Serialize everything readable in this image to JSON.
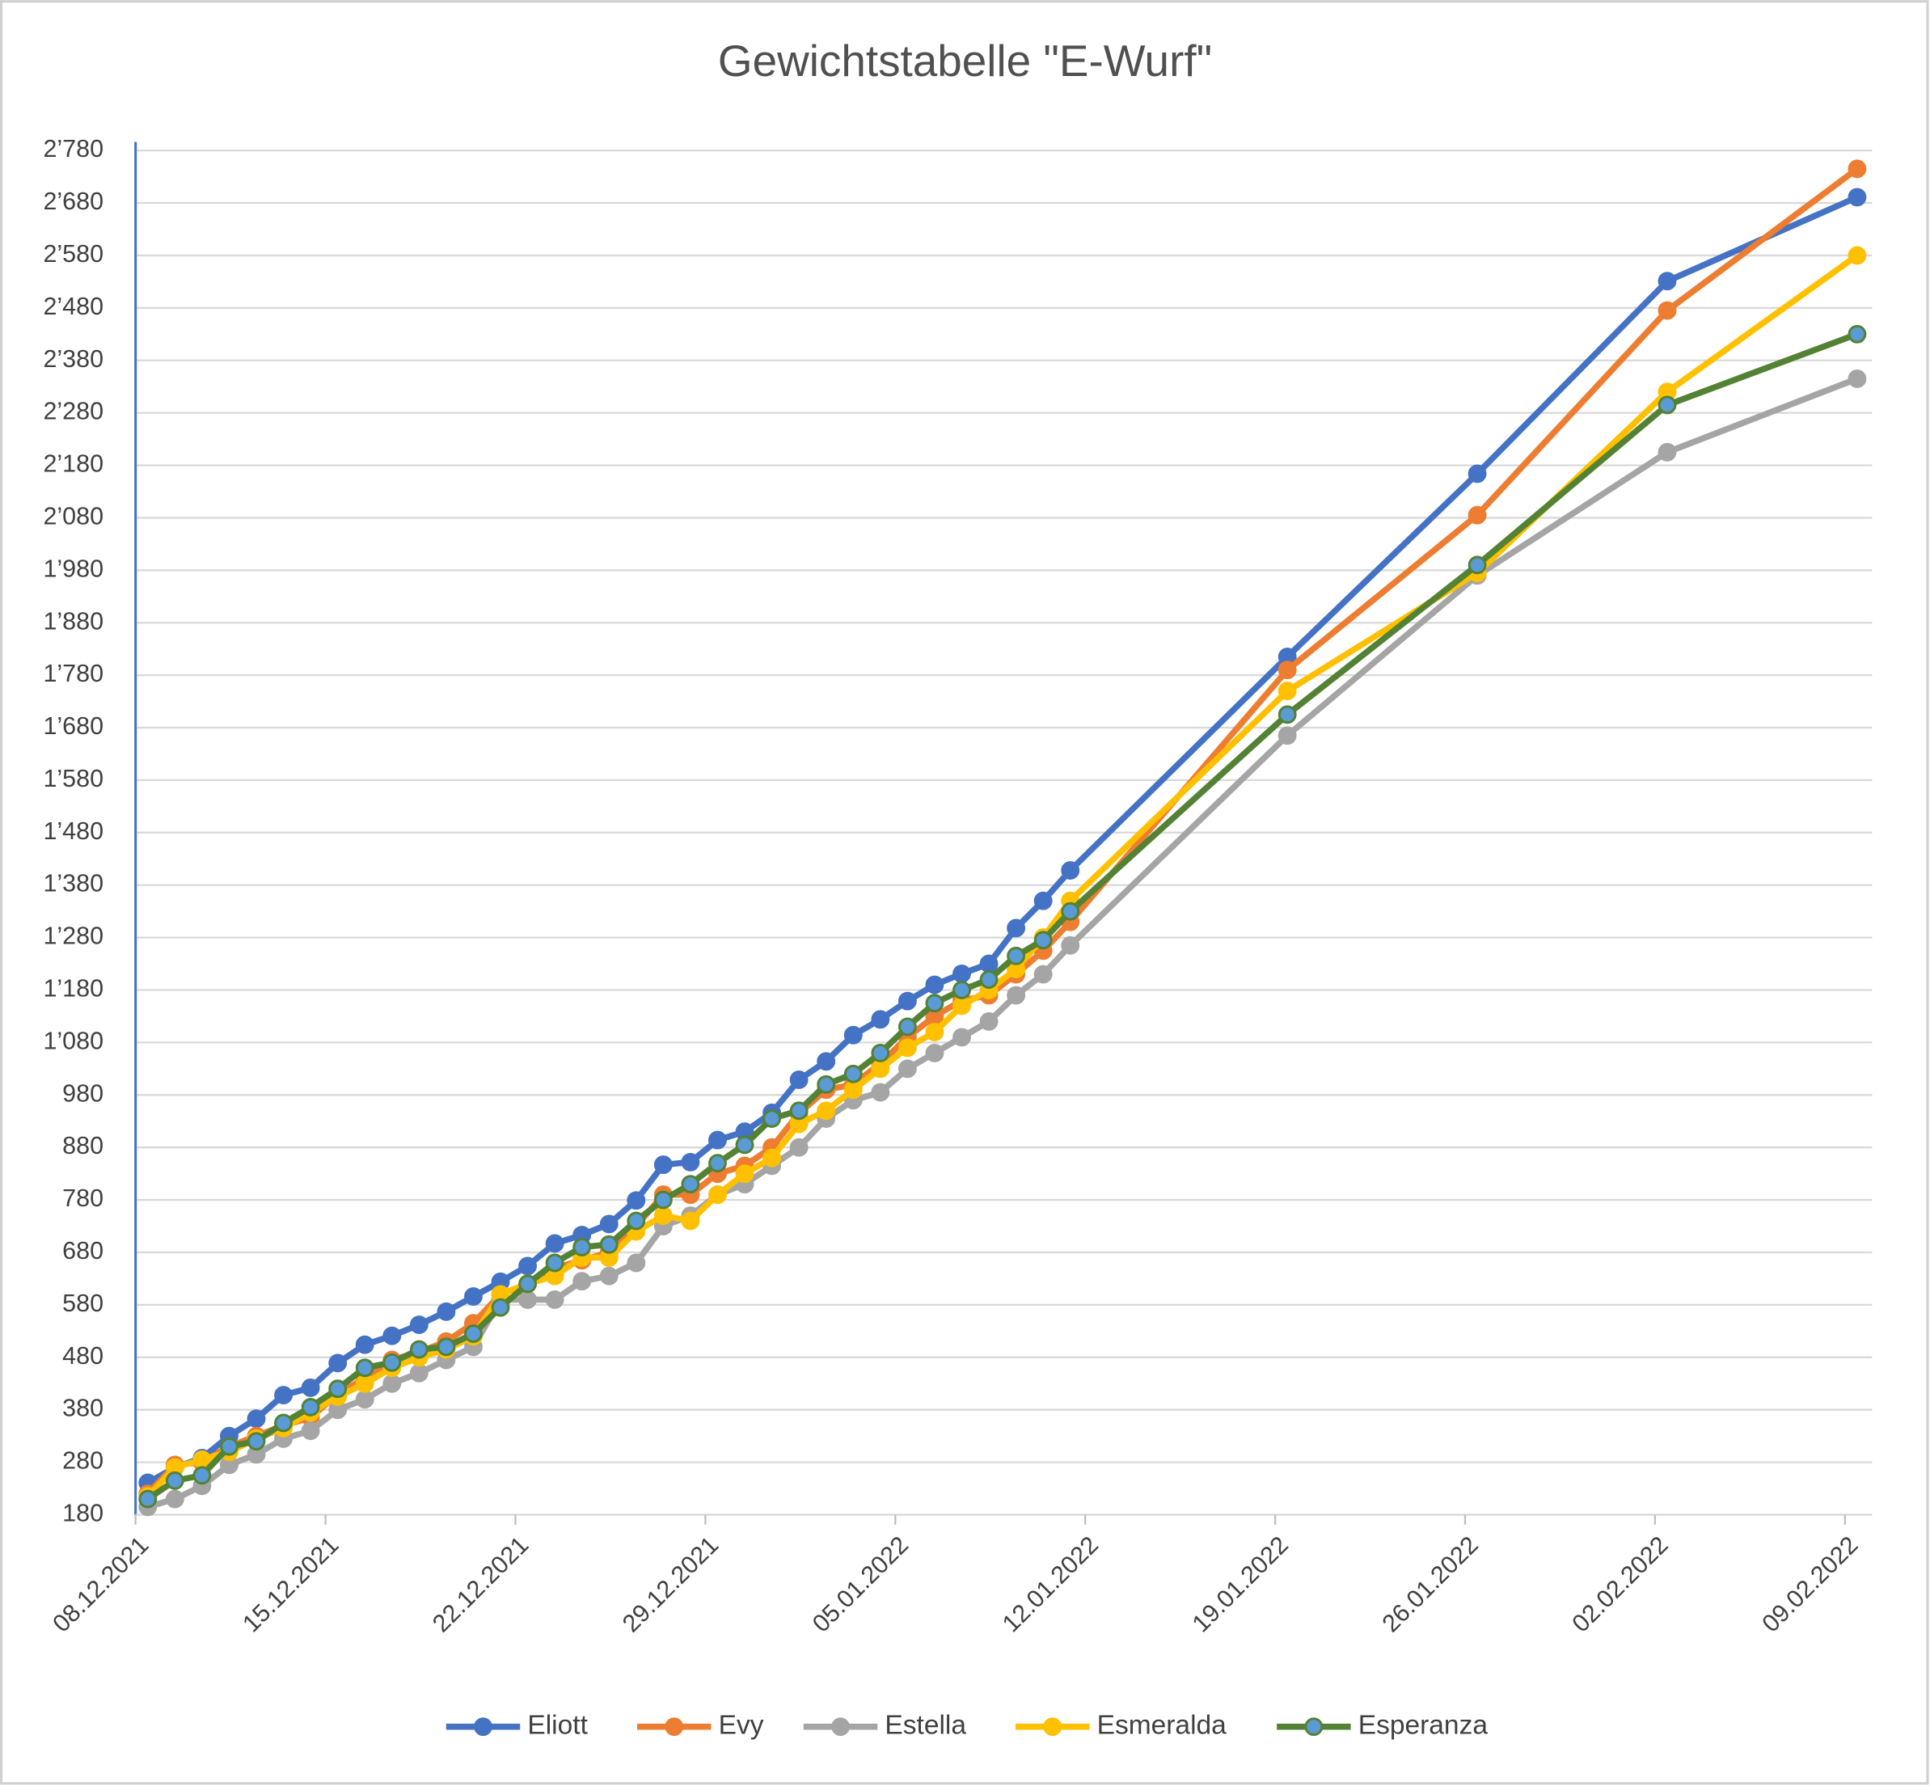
{
  "chart_data": {
    "type": "line",
    "title": "Gewichtstabelle \"E-Wurf\"",
    "x": [
      "08.12.2021",
      "09.12.2021",
      "10.12.2021",
      "11.12.2021",
      "12.12.2021",
      "13.12.2021",
      "14.12.2021",
      "15.12.2021",
      "16.12.2021",
      "17.12.2021",
      "18.12.2021",
      "19.12.2021",
      "20.12.2021",
      "21.12.2021",
      "22.12.2021",
      "23.12.2021",
      "24.12.2021",
      "25.12.2021",
      "26.12.2021",
      "27.12.2021",
      "28.12.2021",
      "29.12.2021",
      "30.12.2021",
      "31.12.2021",
      "01.01.2022",
      "02.01.2022",
      "03.01.2022",
      "04.01.2022",
      "05.01.2022",
      "06.01.2022",
      "07.01.2022",
      "08.01.2022",
      "09.01.2022",
      "10.01.2022",
      "11.01.2022",
      "19.01.2022",
      "26.01.2022",
      "02.02.2022",
      "09.02.2022"
    ],
    "series": [
      {
        "name": "Eliott",
        "color": "#4472c4",
        "values": [
          241,
          270,
          288,
          330,
          363,
          408,
          422,
          469,
          504,
          521,
          542,
          567,
          596,
          624,
          654,
          697,
          713,
          734,
          779,
          847,
          852,
          894,
          910,
          946,
          1009,
          1044,
          1094,
          1124,
          1159,
          1190,
          1211,
          1230,
          1298,
          1350,
          1408,
          1815,
          2164,
          2531,
          2691
        ]
      },
      {
        "name": "Evy",
        "color": "#ed7d31",
        "values": [
          220,
          275,
          280,
          310,
          330,
          350,
          365,
          410,
          440,
          475,
          490,
          510,
          545,
          600,
          620,
          650,
          665,
          680,
          730,
          790,
          790,
          830,
          845,
          880,
          945,
          990,
          1000,
          1040,
          1090,
          1130,
          1160,
          1170,
          1210,
          1255,
          1310,
          1790,
          2085,
          2475,
          2745
        ]
      },
      {
        "name": "Estella",
        "color": "#a5a5a5",
        "values": [
          195,
          210,
          235,
          275,
          295,
          325,
          340,
          380,
          400,
          430,
          450,
          475,
          500,
          590,
          590,
          590,
          625,
          635,
          660,
          730,
          750,
          790,
          810,
          845,
          880,
          935,
          970,
          985,
          1030,
          1060,
          1090,
          1120,
          1170,
          1210,
          1265,
          1665,
          1970,
          2205,
          2345
        ]
      },
      {
        "name": "Esmeralda",
        "color": "#ffc000",
        "values": [
          215,
          270,
          285,
          300,
          325,
          345,
          375,
          405,
          430,
          460,
          480,
          495,
          520,
          600,
          620,
          635,
          670,
          670,
          720,
          750,
          740,
          790,
          830,
          860,
          925,
          950,
          990,
          1030,
          1070,
          1100,
          1150,
          1180,
          1220,
          1280,
          1350,
          1750,
          1975,
          2320,
          2580
        ]
      },
      {
        "name": "Esperanza",
        "color": "#548235",
        "marker_fill": "#5b9bd5",
        "values": [
          210,
          245,
          255,
          310,
          320,
          355,
          385,
          420,
          460,
          470,
          495,
          500,
          525,
          575,
          620,
          660,
          690,
          695,
          740,
          780,
          810,
          850,
          885,
          935,
          950,
          1000,
          1020,
          1060,
          1110,
          1155,
          1180,
          1200,
          1245,
          1275,
          1330,
          1705,
          1990,
          2295,
          2430
        ]
      }
    ],
    "xlim": [
      "08.12.2021",
      "10.02.2022"
    ],
    "xticks": [
      "08.12.2021",
      "15.12.2021",
      "22.12.2021",
      "29.12.2021",
      "05.01.2022",
      "12.01.2022",
      "19.01.2022",
      "26.01.2022",
      "02.02.2022",
      "09.02.2022"
    ],
    "ylim": [
      180,
      2780
    ],
    "yticks": [
      180,
      280,
      380,
      480,
      580,
      680,
      780,
      880,
      980,
      {
        "value": 1080,
        "label": "1’080"
      },
      {
        "value": 1180,
        "label": "1’180"
      },
      {
        "value": 1280,
        "label": "1’280"
      },
      {
        "value": 1380,
        "label": "1’380"
      },
      {
        "value": 1480,
        "label": "1’480"
      },
      {
        "value": 1580,
        "label": "1’580"
      },
      {
        "value": 1680,
        "label": "1’680"
      },
      {
        "value": 1780,
        "label": "1’780"
      },
      {
        "value": 1880,
        "label": "1’880"
      },
      {
        "value": 1980,
        "label": "1’980"
      },
      {
        "value": 2080,
        "label": "2’080"
      },
      {
        "value": 2180,
        "label": "2’180"
      },
      {
        "value": 2280,
        "label": "2’280"
      },
      {
        "value": 2380,
        "label": "2’380"
      },
      {
        "value": 2480,
        "label": "2’480"
      },
      {
        "value": 2580,
        "label": "2’580"
      },
      {
        "value": 2680,
        "label": "2’680"
      },
      {
        "value": 2780,
        "label": "2’780"
      }
    ],
    "grid": true,
    "legend": "bottom"
  }
}
